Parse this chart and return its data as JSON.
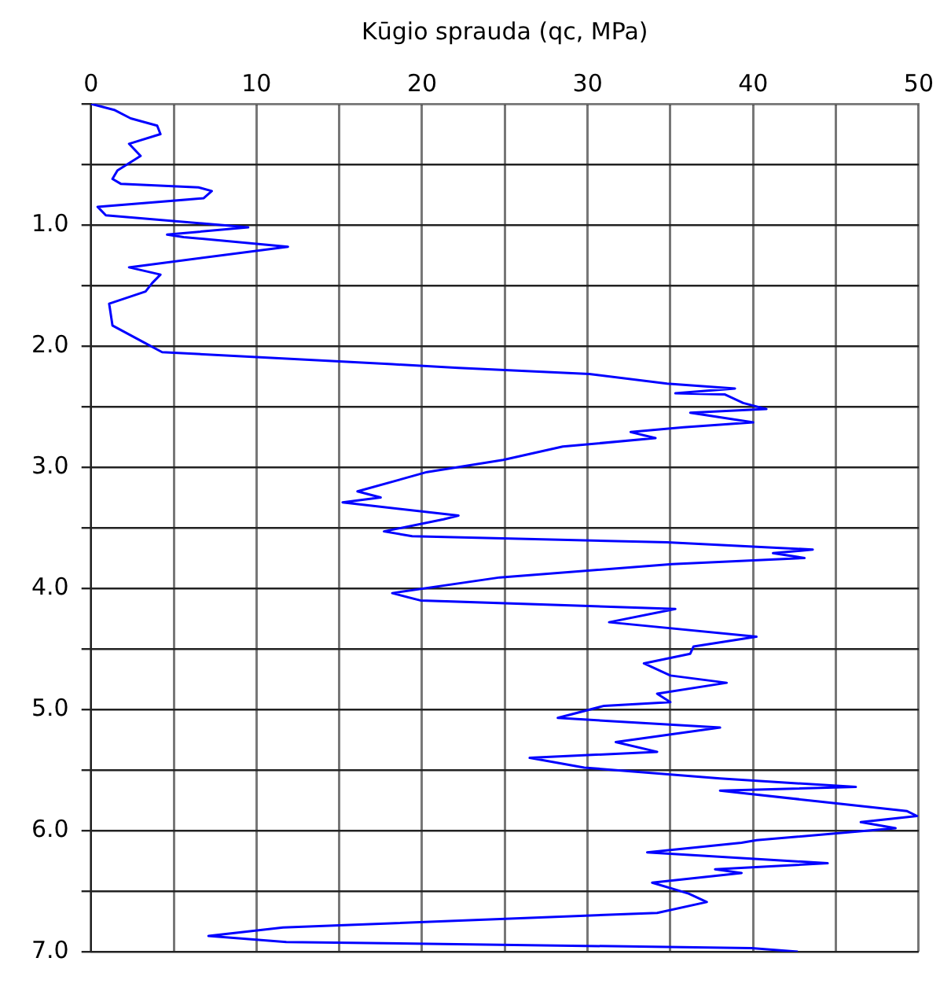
{
  "chart_data": {
    "type": "line",
    "xlabel": "Kūgio sprauda (qc, MPa)",
    "xlim": [
      0,
      50
    ],
    "xticks": [
      0,
      {
        "value": 5,
        "label": null
      },
      10,
      {
        "value": 15,
        "label": null
      },
      20,
      {
        "value": 25,
        "label": null
      },
      30,
      {
        "value": 35,
        "label": null
      },
      40,
      {
        "value": 45,
        "label": null
      },
      50
    ],
    "ylim": [
      7,
      0
    ],
    "yticks": [
      {
        "value": 0,
        "label": null
      },
      {
        "value": 0.5,
        "label": null
      },
      {
        "value": 1,
        "label": "1.0"
      },
      {
        "value": 1.5,
        "label": null
      },
      {
        "value": 2,
        "label": "2.0"
      },
      {
        "value": 2.5,
        "label": null
      },
      {
        "value": 3,
        "label": "3.0"
      },
      {
        "value": 3.5,
        "label": null
      },
      {
        "value": 4,
        "label": "4.0"
      },
      {
        "value": 4.5,
        "label": null
      },
      {
        "value": 5,
        "label": "5.0"
      },
      {
        "value": 5.5,
        "label": null
      },
      {
        "value": 6,
        "label": "6.0"
      },
      {
        "value": 6.5,
        "label": null
      },
      {
        "value": 7,
        "label": "7.0"
      }
    ],
    "grid": true,
    "legend": false,
    "marker": "none",
    "line_style": "solid",
    "series": [
      {
        "color": "#0000ff",
        "x": [
          0,
          1.4,
          2.4,
          4.0,
          4.2,
          2.3,
          3.0,
          1.6,
          1.3,
          1.8,
          6.5,
          7.3,
          6.8,
          0.4,
          0.9,
          9.5,
          4.6,
          5.6,
          11.9,
          2.3,
          4.2,
          3.7,
          3.3,
          1.1,
          1.3,
          3.2,
          4.3,
          18.2,
          22.2,
          30.1,
          34.8,
          38.9,
          35.3,
          38.3,
          39.4,
          40.8,
          36.2,
          40.0,
          35.8,
          32.6,
          34.1,
          28.5,
          24.9,
          20.3,
          16.1,
          17.5,
          15.2,
          22.2,
          21.3,
          17.7,
          19.4,
          34.8,
          43.6,
          41.2,
          43.1,
          35.1,
          24.7,
          18.2,
          19.9,
          33.2,
          35.3,
          31.3,
          40.2,
          36.4,
          36.2,
          33.4,
          35.0,
          38.4,
          34.2,
          35.0,
          31.0,
          28.2,
          38.0,
          31.7,
          34.2,
          26.5,
          29.8,
          38.0,
          46.2,
          38.0,
          49.3,
          49.9,
          46.5,
          48.6,
          40.2,
          39.3,
          33.6,
          44.5,
          37.7,
          39.3,
          33.9,
          36.1,
          37.2,
          34.2,
          11.6,
          7.1,
          11.8,
          39.9,
          42.7
        ],
        "values": [
          0,
          0.05,
          0.12,
          0.18,
          0.25,
          0.33,
          0.43,
          0.55,
          0.62,
          0.66,
          0.69,
          0.72,
          0.78,
          0.85,
          0.92,
          1.02,
          1.08,
          1.1,
          1.18,
          1.35,
          1.41,
          1.48,
          1.55,
          1.65,
          1.83,
          1.97,
          2.05,
          2.15,
          2.18,
          2.23,
          2.31,
          2.35,
          2.39,
          2.4,
          2.47,
          2.52,
          2.55,
          2.63,
          2.67,
          2.71,
          2.76,
          2.83,
          2.94,
          3.04,
          3.2,
          3.25,
          3.29,
          3.4,
          3.43,
          3.53,
          3.57,
          3.62,
          3.68,
          3.71,
          3.75,
          3.8,
          3.91,
          4.04,
          4.1,
          4.16,
          4.17,
          4.28,
          4.4,
          4.48,
          4.54,
          4.62,
          4.72,
          4.78,
          4.87,
          4.94,
          4.97,
          5.07,
          5.15,
          5.27,
          5.35,
          5.4,
          5.48,
          5.57,
          5.64,
          5.67,
          5.84,
          5.88,
          5.93,
          5.98,
          6.08,
          6.1,
          6.18,
          6.27,
          6.32,
          6.35,
          6.43,
          6.52,
          6.59,
          6.68,
          6.8,
          6.87,
          6.92,
          6.97,
          7.0
        ]
      }
    ]
  }
}
